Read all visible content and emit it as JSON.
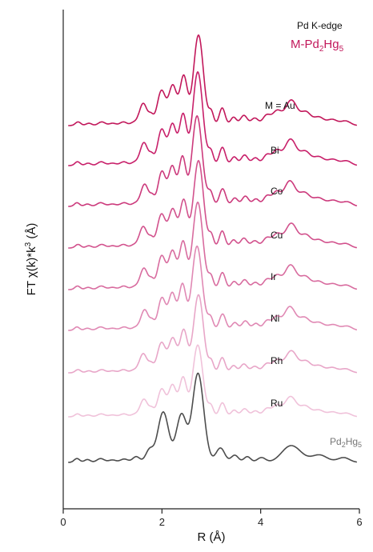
{
  "chart_data": {
    "type": "line",
    "edge_label": "Pd K-edge",
    "sample_label": "M-Pd",
    "sample_sub1": "2",
    "sample_mid": "Hg",
    "sample_sub2": "5",
    "xlabel": "R (Å)",
    "ylabel_parts": [
      "FT ",
      "χ",
      "(k)*k",
      "3",
      " (Å)"
    ],
    "xlim": [
      0,
      6
    ],
    "x_ticks": [
      "0",
      "2",
      "4",
      "6"
    ],
    "x_tick_values": [
      0,
      2,
      4,
      6
    ],
    "grid": false,
    "offset_stacked": true,
    "series": [
      {
        "name": "M = Au",
        "color": "#c2185b"
      },
      {
        "name": "Bi",
        "color": "#c8206a"
      },
      {
        "name": "Co",
        "color": "#cc3a7c"
      },
      {
        "name": "Cu",
        "color": "#d2528d"
      },
      {
        "name": "Ir",
        "color": "#d86c9f"
      },
      {
        "name": "Ni",
        "color": "#e089b4"
      },
      {
        "name": "Rh",
        "color": "#e8a6c8"
      },
      {
        "name": "Ru",
        "color": "#f0c2da"
      },
      {
        "name": "Pd2Hg5",
        "name_main": "Pd",
        "name_sub1": "2",
        "name_mid": "Hg",
        "name_sub2": "5",
        "color": "#4d4d4d"
      }
    ]
  }
}
